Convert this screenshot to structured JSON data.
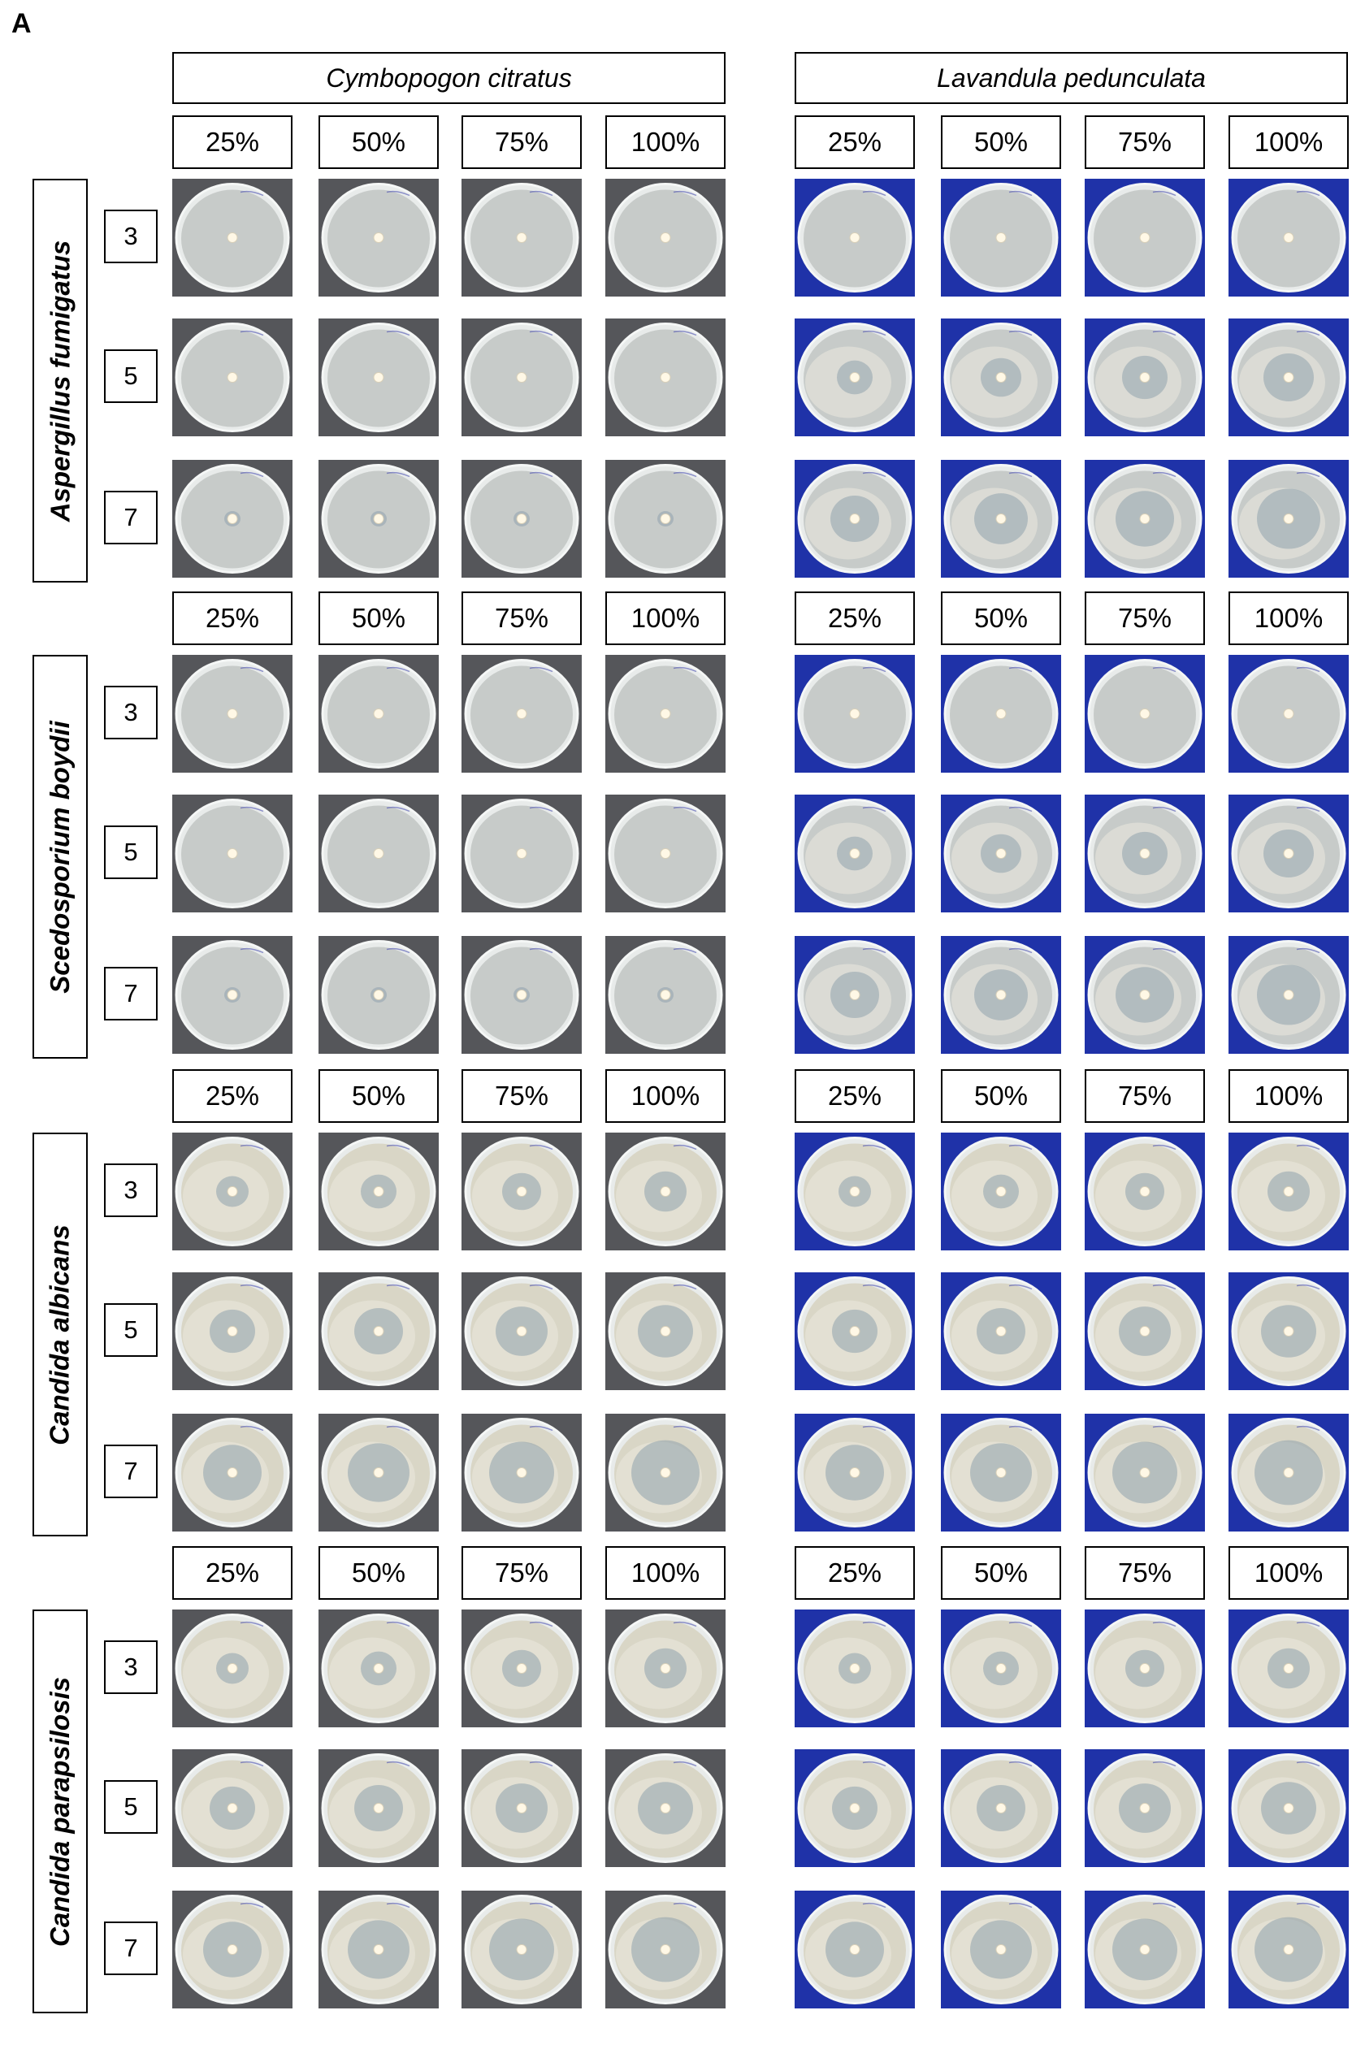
{
  "panel_label": "A",
  "oils": [
    "Cymbopogon citratus",
    "Lavandula pedunculata"
  ],
  "concentrations": [
    "25%",
    "50%",
    "75%",
    "100%"
  ],
  "days": [
    "3",
    "5",
    "7"
  ],
  "species": [
    "Aspergillus fumigatus",
    "Scedosporium boydii",
    "Candida albicans",
    "Candida parapsilosis"
  ],
  "colors": {
    "background_gray": "#55565a",
    "background_blue": "#1f32a8",
    "agar": "#c7cbc9",
    "candida_agar": "#d9d6c6",
    "disc": "#fff8e6"
  }
}
